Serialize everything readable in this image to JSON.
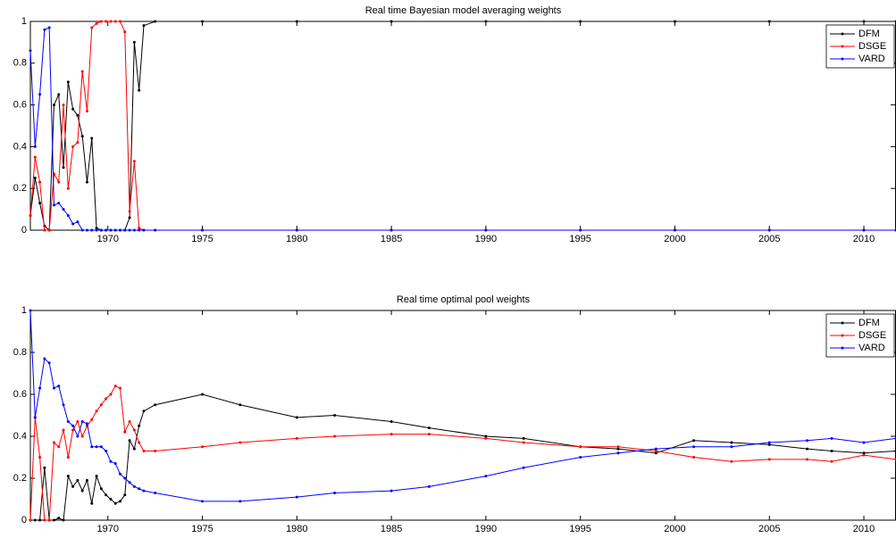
{
  "chart_data": [
    {
      "type": "line",
      "title": "Real time Bayesian model averaging weights",
      "x": [
        1965.9,
        1966.15,
        1966.4,
        1966.65,
        1966.9,
        1967.15,
        1967.4,
        1967.65,
        1967.9,
        1968.15,
        1968.4,
        1968.65,
        1968.9,
        1969.15,
        1969.4,
        1969.65,
        1969.9,
        1970.15,
        1970.4,
        1970.65,
        1970.9,
        1971.15,
        1971.4,
        1971.65,
        1971.9,
        1972.5,
        1975,
        1980,
        1985,
        1990,
        1995,
        2000,
        2005,
        2010,
        2011.7
      ],
      "series": [
        {
          "name": "DFM",
          "color": "#000000",
          "values": [
            0.07,
            0.25,
            0.13,
            0.02,
            0.0,
            0.6,
            0.65,
            0.3,
            0.71,
            0.58,
            0.55,
            0.45,
            0.23,
            0.44,
            0.01,
            0.0,
            0.0,
            0.0,
            0.0,
            0.0,
            0.0,
            0.06,
            0.9,
            0.67,
            0.98,
            1,
            1,
            1,
            1,
            1,
            1,
            1,
            1,
            1,
            1
          ]
        },
        {
          "name": "DSGE",
          "color": "#ff0000",
          "values": [
            0.07,
            0.35,
            0.23,
            0.0,
            0.0,
            0.27,
            0.23,
            0.6,
            0.2,
            0.4,
            0.42,
            0.76,
            0.57,
            0.97,
            0.99,
            1,
            1,
            1,
            1,
            1,
            0.95,
            0.09,
            0.33,
            0.01,
            0.0,
            0,
            0,
            0,
            0,
            0,
            0,
            0,
            0,
            0,
            0
          ]
        },
        {
          "name": "VARD",
          "color": "#0000ff",
          "values": [
            0.86,
            0.4,
            0.65,
            0.96,
            0.97,
            0.12,
            0.13,
            0.1,
            0.07,
            0.03,
            0.04,
            0.0,
            0.0,
            0.0,
            0.0,
            0.0,
            0.0,
            0.0,
            0.0,
            0.0,
            0.0,
            0.0,
            0.0,
            0.0,
            0.0,
            0,
            0,
            0,
            0,
            0,
            0,
            0,
            0,
            0,
            0
          ]
        }
      ],
      "xlim": [
        1965.9,
        2011.7
      ],
      "xticks": [
        1970,
        1975,
        1980,
        1985,
        1990,
        1995,
        2000,
        2005,
        2010
      ],
      "ylim": [
        0,
        1
      ],
      "yticks": [
        0,
        0.2,
        0.4,
        0.6,
        0.8,
        1
      ],
      "legend": "upper right",
      "grid": false
    },
    {
      "type": "line",
      "title": "Real time optimal pool weights",
      "x": [
        1965.9,
        1966.15,
        1966.4,
        1966.65,
        1966.9,
        1967.15,
        1967.4,
        1967.65,
        1967.9,
        1968.15,
        1968.4,
        1968.65,
        1968.9,
        1969.15,
        1969.4,
        1969.65,
        1969.9,
        1970.15,
        1970.4,
        1970.65,
        1970.9,
        1971.15,
        1971.4,
        1971.65,
        1971.9,
        1972.5,
        1975,
        1977,
        1980,
        1982,
        1985,
        1987,
        1990,
        1992,
        1995,
        1997,
        1999,
        2001,
        2003,
        2005,
        2007,
        2008.3,
        2010,
        2011.7
      ],
      "series": [
        {
          "name": "DFM",
          "color": "#000000",
          "values": [
            0.0,
            0.0,
            0.0,
            0.25,
            0.0,
            0.0,
            0.01,
            0.0,
            0.21,
            0.16,
            0.19,
            0.14,
            0.19,
            0.08,
            0.21,
            0.15,
            0.12,
            0.1,
            0.08,
            0.09,
            0.12,
            0.38,
            0.34,
            0.45,
            0.52,
            0.55,
            0.6,
            0.55,
            0.49,
            0.5,
            0.47,
            0.44,
            0.4,
            0.39,
            0.35,
            0.34,
            0.32,
            0.38,
            0.37,
            0.36,
            0.34,
            0.33,
            0.32,
            0.33
          ]
        },
        {
          "name": "DSGE",
          "color": "#ff0000",
          "values": [
            0.0,
            0.49,
            0.3,
            0.0,
            0.0,
            0.37,
            0.35,
            0.43,
            0.3,
            0.43,
            0.47,
            0.4,
            0.45,
            0.48,
            0.52,
            0.55,
            0.58,
            0.6,
            0.64,
            0.63,
            0.42,
            0.47,
            0.43,
            0.37,
            0.33,
            0.33,
            0.35,
            0.37,
            0.39,
            0.4,
            0.41,
            0.41,
            0.39,
            0.37,
            0.35,
            0.35,
            0.33,
            0.3,
            0.28,
            0.29,
            0.29,
            0.28,
            0.31,
            0.29
          ]
        },
        {
          "name": "VARD",
          "color": "#0000ff",
          "values": [
            1.0,
            0.49,
            0.63,
            0.77,
            0.75,
            0.63,
            0.64,
            0.55,
            0.47,
            0.45,
            0.4,
            0.47,
            0.46,
            0.35,
            0.35,
            0.35,
            0.33,
            0.28,
            0.27,
            0.22,
            0.2,
            0.18,
            0.16,
            0.15,
            0.14,
            0.13,
            0.09,
            0.09,
            0.11,
            0.13,
            0.14,
            0.16,
            0.21,
            0.25,
            0.3,
            0.32,
            0.34,
            0.35,
            0.35,
            0.37,
            0.38,
            0.39,
            0.37,
            0.39
          ]
        }
      ],
      "xlim": [
        1965.9,
        2011.7
      ],
      "xticks": [
        1970,
        1975,
        1980,
        1985,
        1990,
        1995,
        2000,
        2005,
        2010
      ],
      "ylim": [
        0,
        1
      ],
      "yticks": [
        0,
        0.2,
        0.4,
        0.6,
        0.8,
        1
      ],
      "legend": "upper right",
      "grid": false
    }
  ]
}
